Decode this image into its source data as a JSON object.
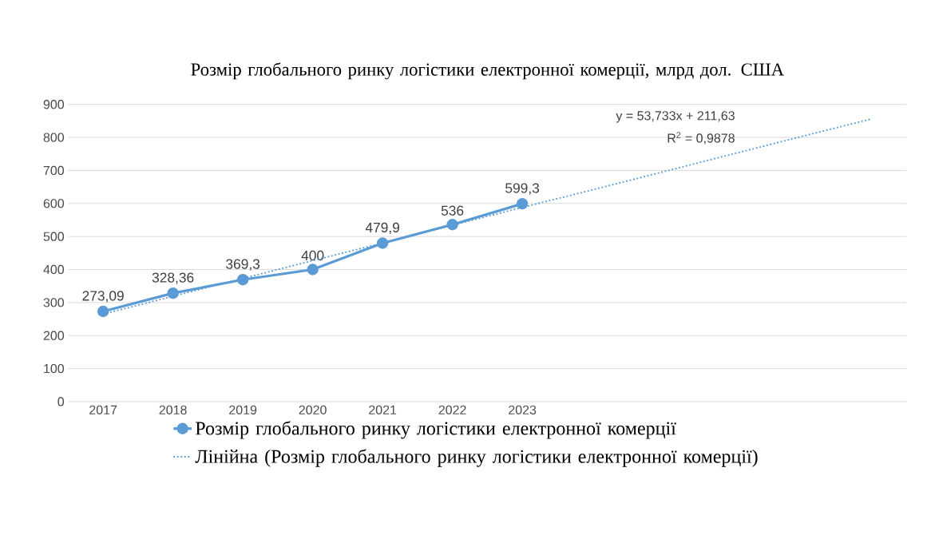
{
  "chart_data": {
    "type": "line",
    "title": "Розмір глобального ринку логістики електронної комерції, млрд дол. США",
    "categories": [
      "2017",
      "2018",
      "2019",
      "2020",
      "2021",
      "2022",
      "2023",
      null,
      null,
      null,
      null,
      null
    ],
    "series": [
      {
        "name": "Розмір глобального ринку логістики електронної комерції",
        "color": "#5b9bd5",
        "marker": "circle",
        "line_style": "solid",
        "values": [
          273.09,
          328.36,
          369.3,
          400,
          479.9,
          536,
          599.3,
          null,
          null,
          null,
          null,
          null
        ],
        "value_labels": [
          "273,09",
          "328,36",
          "369,3",
          "400",
          "479,9",
          "536",
          "599,3",
          null,
          null,
          null,
          null,
          null
        ]
      },
      {
        "name": "Лінійна (Розмір глобального ринку логістики електронної комерції)",
        "color": "#5b9bd5",
        "marker": "none",
        "line_style": "dotted",
        "values": [
          265,
          319,
          373,
          427,
          480,
          534,
          588,
          641,
          695,
          749,
          803,
          856
        ]
      }
    ],
    "ylim": [
      0,
      900
    ],
    "yticks": [
      0,
      100,
      200,
      300,
      400,
      500,
      600,
      700,
      800,
      900
    ],
    "grid": "y",
    "legend": "bottom",
    "annotations": [
      "y = 53,733x + 211,63",
      "R$^{2}$ = 0,9878"
    ]
  }
}
